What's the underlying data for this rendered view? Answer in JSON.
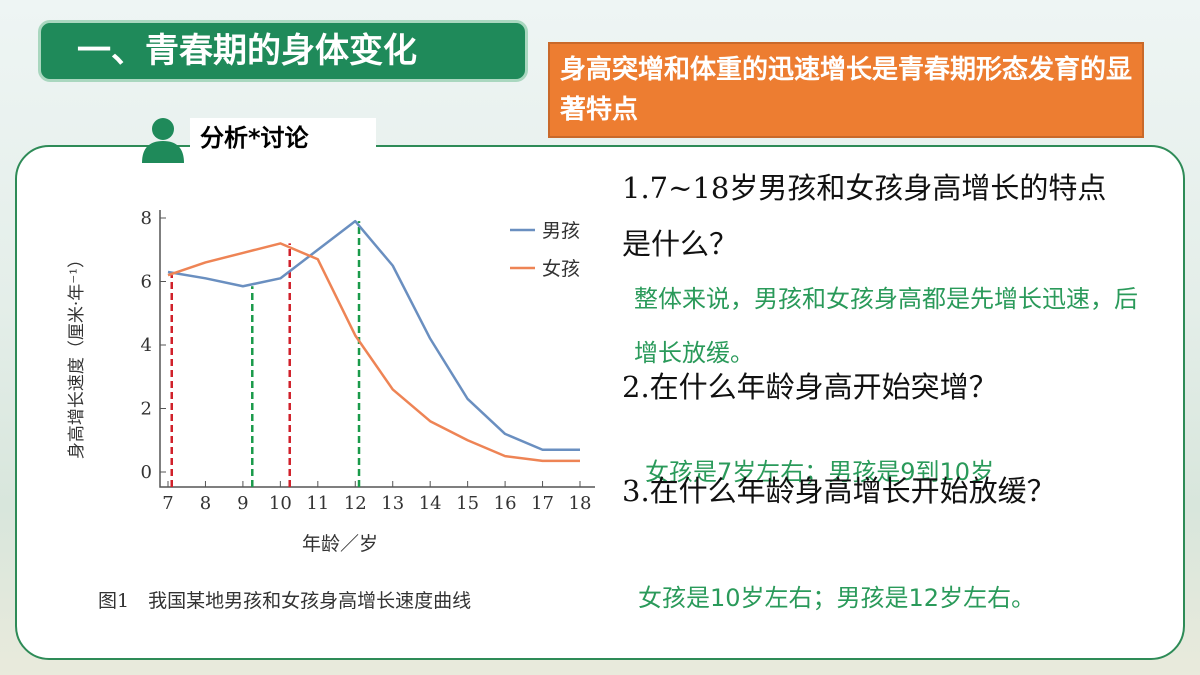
{
  "header": {
    "title": "一、青春期的身体变化",
    "highlight": "身高突增和体重的迅速增长是青春期形态发育的显著特点",
    "section": "分析*讨论"
  },
  "questions": [
    {
      "q": "1.7~18岁男孩和女孩身高增长的特点是什么？",
      "a": "整体来说，男孩和女孩身高都是先增长迅速，后增长放缓。"
    },
    {
      "q": "2.在什么年龄身高开始突增？",
      "a": "女孩是7岁左右；男孩是9到10岁"
    },
    {
      "q": "3.在什么年龄身高增长开始放缓？",
      "a": "女孩是10岁左右；男孩是12岁左右。"
    }
  ],
  "chart_data": {
    "type": "line",
    "caption": "图1　我国某地男孩和女孩身高增长速度曲线",
    "x_label": "年龄／岁",
    "y_label": "身高增长速度（厘米·年⁻¹）",
    "x": [
      7,
      8,
      9,
      10,
      11,
      12,
      13,
      14,
      15,
      16,
      17,
      18
    ],
    "series": [
      {
        "name": "男孩",
        "color": "#6a8fc0",
        "values": [
          6.3,
          6.1,
          5.85,
          6.1,
          7.0,
          7.9,
          6.5,
          4.2,
          2.3,
          1.2,
          0.7,
          0.7
        ]
      },
      {
        "name": "女孩",
        "color": "#ee8455",
        "values": [
          6.2,
          6.6,
          6.9,
          7.2,
          6.7,
          4.3,
          2.6,
          1.6,
          1.0,
          0.5,
          0.35,
          0.35
        ]
      }
    ],
    "reference_lines": [
      {
        "x": 7.1,
        "y": 6.2,
        "color": "#d0202a"
      },
      {
        "x": 9.25,
        "y": 5.85,
        "color": "#1a9a4a"
      },
      {
        "x": 10.25,
        "y": 7.2,
        "color": "#d0202a"
      },
      {
        "x": 12.1,
        "y": 7.9,
        "color": "#1a9a4a"
      }
    ],
    "xlim": [
      7,
      18
    ],
    "ylim": [
      0,
      8
    ],
    "xticks": [
      7,
      8,
      9,
      10,
      11,
      12,
      13,
      14,
      15,
      16,
      17,
      18
    ],
    "yticks": [
      0,
      2,
      4,
      6,
      8
    ]
  }
}
